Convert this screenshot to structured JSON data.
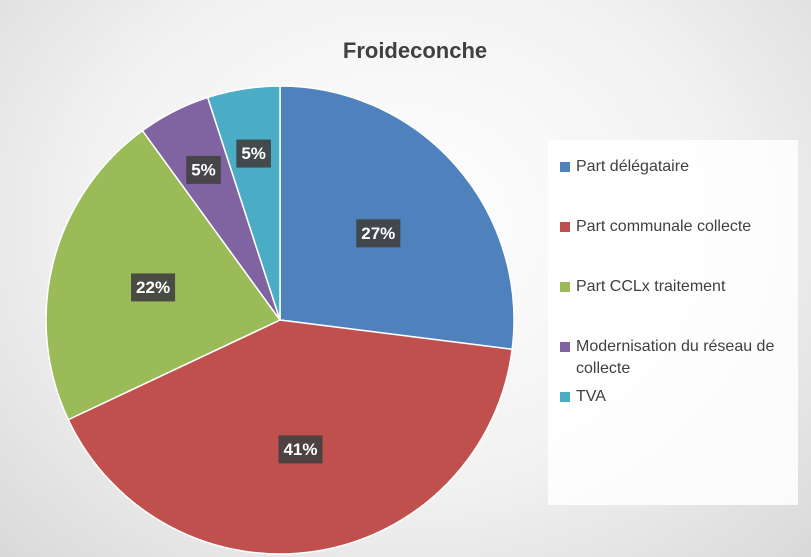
{
  "chart_data": {
    "type": "pie",
    "title": "Froideconche",
    "categories": [
      "Part délégataire",
      "Part communale collecte",
      "Part CCLx traitement",
      "Modernisation du réseau de collecte",
      "TVA"
    ],
    "values": [
      27,
      41,
      22,
      5,
      5
    ],
    "value_labels": [
      "27%",
      "41%",
      "22%",
      "5%",
      "5%"
    ],
    "colors": [
      "#4f81bd",
      "#c0504d",
      "#9bbb59",
      "#8064a2",
      "#4bacc6"
    ],
    "legend": "right"
  }
}
